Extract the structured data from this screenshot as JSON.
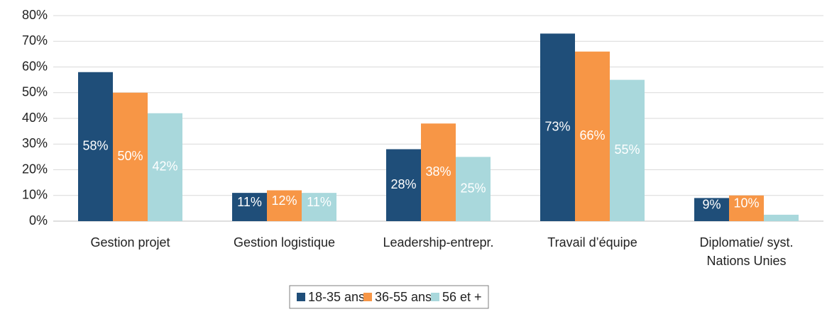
{
  "chart_data": {
    "type": "bar",
    "categories": [
      "Gestion projet",
      "Gestion logistique",
      "Leadership-entrepr.",
      "Travail d’équipe",
      "Diplomatie/ syst. Nations Unies"
    ],
    "series": [
      {
        "name": "18-35 ans",
        "color": "#1f4e79",
        "values": [
          58,
          11,
          28,
          73,
          9
        ],
        "value_labels": [
          "58%",
          "11%",
          "28%",
          "73%",
          "9%"
        ]
      },
      {
        "name": "36-55 ans",
        "color": "#f79646",
        "values": [
          50,
          12,
          38,
          66,
          10
        ],
        "value_labels": [
          "50%",
          "12%",
          "38%",
          "66%",
          "10%"
        ]
      },
      {
        "name": "56 et +",
        "color": "#a9d8dc",
        "values": [
          42,
          11,
          25,
          55,
          2.5
        ],
        "value_labels": [
          "42%",
          "11%",
          "25%",
          "55%",
          null
        ]
      }
    ],
    "ylim": [
      0,
      80
    ],
    "yticks": [
      {
        "value": 0,
        "label": "0%"
      },
      {
        "value": 10,
        "label": "10%"
      },
      {
        "value": 20,
        "label": "20%"
      },
      {
        "value": 30,
        "label": "30%"
      },
      {
        "value": 40,
        "label": "40%"
      },
      {
        "value": 50,
        "label": "50%"
      },
      {
        "value": 60,
        "label": "60%"
      },
      {
        "value": 70,
        "label": "70%"
      },
      {
        "value": 80,
        "label": "80%"
      }
    ],
    "grid": true,
    "legend": "bottom"
  }
}
